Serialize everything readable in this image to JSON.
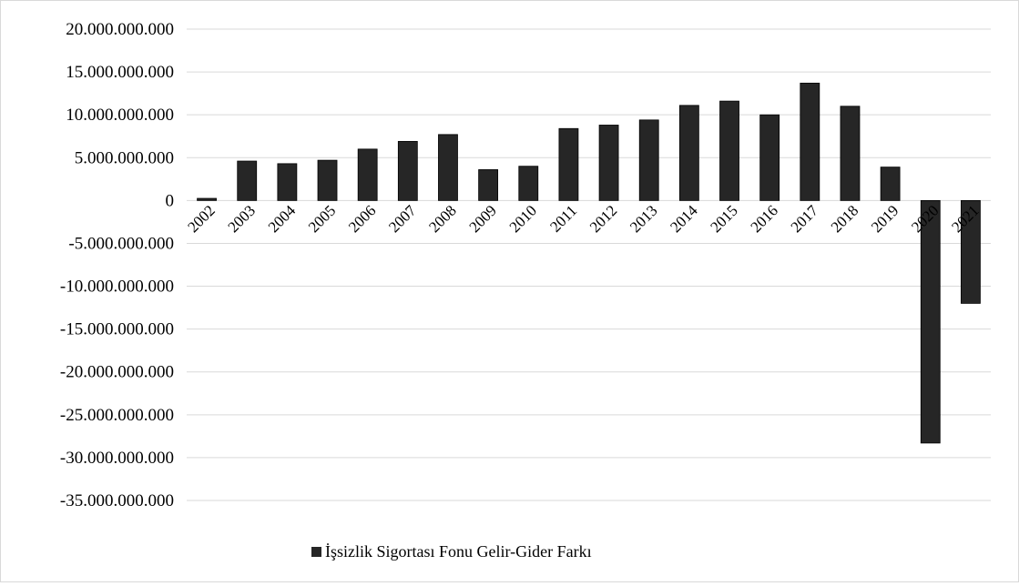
{
  "chart_data": {
    "type": "bar",
    "categories": [
      "2002",
      "2003",
      "2004",
      "2005",
      "2006",
      "2007",
      "2008",
      "2009",
      "2010",
      "2011",
      "2012",
      "2013",
      "2014",
      "2015",
      "2016",
      "2017",
      "2018",
      "2019",
      "2020",
      "2021"
    ],
    "series": [
      {
        "name": "İşsizlik Sigortası Fonu Gelir-Gider Farkı",
        "values": [
          250000000,
          4600000000,
          4300000000,
          4700000000,
          6000000000,
          6900000000,
          7700000000,
          3600000000,
          4000000000,
          8400000000,
          8800000000,
          9400000000,
          11100000000,
          11600000000,
          10000000000,
          13700000000,
          11000000000,
          3900000000,
          -28300000000,
          -12000000000
        ]
      }
    ],
    "yticks": [
      "20.000.000.000",
      "15.000.000.000",
      "10.000.000.000",
      "5.000.000.000",
      "0",
      "-5.000.000.000",
      "-10.000.000.000",
      "-15.000.000.000",
      "-20.000.000.000",
      "-25.000.000.000",
      "-30.000.000.000",
      "-35.000.000.000"
    ],
    "ylim": [
      -35000000000,
      20000000000
    ],
    "grid": true,
    "legend_position": "bottom",
    "colors": {
      "bar": "#262626",
      "bar_stroke": "#000000",
      "grid": "#d9d9d9"
    }
  }
}
